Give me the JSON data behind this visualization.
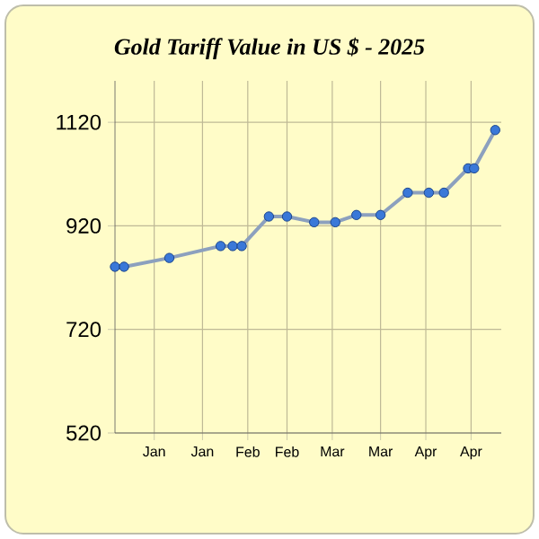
{
  "chart_data": {
    "type": "line",
    "title": "Gold Tariff Value in US $ - 2025",
    "x": [
      "2025-01-02",
      "2025-01-05",
      "2025-01-20",
      "2025-02-06",
      "2025-02-10",
      "2025-02-13",
      "2025-02-22",
      "2025-02-28",
      "2025-03-09",
      "2025-03-16",
      "2025-03-23",
      "2025-03-31",
      "2025-04-09",
      "2025-04-16",
      "2025-04-21",
      "2025-04-29",
      "2025-05-01",
      "2025-05-08"
    ],
    "series": [
      {
        "color": "#3a78d8",
        "values": [
          841,
          841,
          858,
          881,
          881,
          881,
          938,
          938,
          927,
          927,
          941,
          941,
          984,
          984,
          984,
          1031,
          1031,
          1105
        ]
      }
    ],
    "xlim": [
      "2025-01-02",
      "2025-05-10"
    ],
    "xticks": [
      {
        "value": "2025-01-15",
        "label": "Jan"
      },
      {
        "value": "2025-01-31",
        "label": "Jan"
      },
      {
        "value": "2025-02-15",
        "label": "Feb"
      },
      {
        "value": "2025-02-28",
        "label": "Feb"
      },
      {
        "value": "2025-03-15",
        "label": "Mar"
      },
      {
        "value": "2025-03-31",
        "label": "Mar"
      },
      {
        "value": "2025-04-15",
        "label": "Apr"
      },
      {
        "value": "2025-04-30",
        "label": "Apr"
      }
    ],
    "ylim": [
      520,
      1200
    ],
    "yticks": [
      520,
      720,
      920,
      1120
    ],
    "grid": true,
    "marker": "circle",
    "line_style": "solid"
  }
}
